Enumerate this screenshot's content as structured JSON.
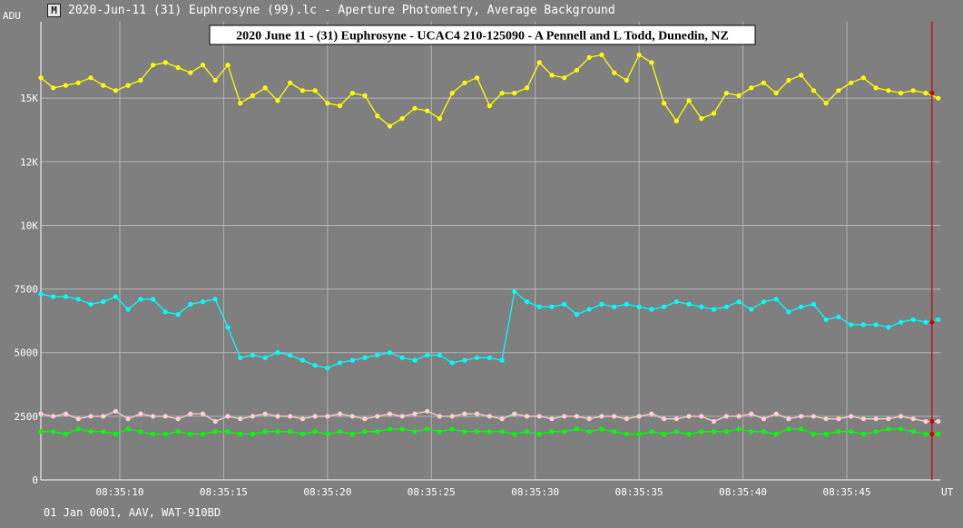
{
  "window": {
    "title": "2020-Jun-11 (31) Euphrosyne (99).lc - Aperture Photometry, Average Background",
    "icon": "lightcurve-app-icon"
  },
  "footer": {
    "text": "01 Jan 0001, AAV, WAT-910BD"
  },
  "colors": {
    "background": "#7f7f7f",
    "grid": "#b4b4b4",
    "axis": "#ffffff",
    "cursor": "#cc0000",
    "target": "#ffff00",
    "comp1": "#00ffff",
    "comp2": "#ffd0d0",
    "comp3": "#00ff00"
  },
  "chart_data": {
    "type": "line",
    "title": "2020 June 11 - (31) Euphrosyne - UCAC4 210-125090 - A Pennell and L Todd, Dunedin, NZ",
    "ylabel": "ADU",
    "xlabel": "UT",
    "ylim": [
      0,
      18000
    ],
    "xlim": [
      "08:35:06.2",
      "08:35:49.5"
    ],
    "x_ticks": [
      "08:35:10",
      "08:35:15",
      "08:35:20",
      "08:35:25",
      "08:35:30",
      "08:35:35",
      "08:35:40",
      "08:35:45"
    ],
    "y_ticks": [
      {
        "value": 0,
        "label": "0"
      },
      {
        "value": 2500,
        "label": "2500"
      },
      {
        "value": 5000,
        "label": "5000"
      },
      {
        "value": 7500,
        "label": "7500"
      },
      {
        "value": 10000,
        "label": "10K"
      },
      {
        "value": 12500,
        "label": "12K"
      },
      {
        "value": 15000,
        "label": "15K"
      }
    ],
    "grid": true,
    "cursor_time": "08:35:49.1",
    "x": [
      6.2,
      6.8,
      7.4,
      8.0,
      8.6,
      9.2,
      9.8,
      10.4,
      11.0,
      11.6,
      12.2,
      12.8,
      13.4,
      14.0,
      14.6,
      15.2,
      15.8,
      16.4,
      17.0,
      17.6,
      18.2,
      18.8,
      19.4,
      20.0,
      20.6,
      21.2,
      21.8,
      22.4,
      23.0,
      23.6,
      24.2,
      24.8,
      25.4,
      26.0,
      26.6,
      27.2,
      27.8,
      28.4,
      29.0,
      29.6,
      30.2,
      30.8,
      31.4,
      32.0,
      32.6,
      33.2,
      33.8,
      34.4,
      35.0,
      35.6,
      36.2,
      36.8,
      37.4,
      38.0,
      38.6,
      39.2,
      39.8,
      40.4,
      41.0,
      41.6,
      42.2,
      42.8,
      43.4,
      44.0,
      44.6,
      45.2,
      45.8,
      46.4,
      47.0,
      47.6,
      48.2,
      48.8,
      49.4
    ],
    "series": [
      {
        "name": "",
        "color": "#ffff00",
        "values": [
          15800,
          15400,
          15500,
          15600,
          15800,
          15500,
          15300,
          15500,
          15700,
          16300,
          16400,
          16200,
          16000,
          16300,
          15700,
          16300,
          14800,
          15100,
          15400,
          14900,
          15600,
          15300,
          15300,
          14800,
          14700,
          15200,
          15100,
          14300,
          13900,
          14200,
          14600,
          14500,
          14200,
          15200,
          15600,
          15800,
          14700,
          15200,
          15200,
          15400,
          16400,
          15900,
          15800,
          16100,
          16600,
          16700,
          16000,
          15700,
          16700,
          16400,
          14800,
          14100,
          14900,
          14200,
          14400,
          15200,
          15100,
          15400,
          15600,
          15200,
          15700,
          15900,
          15300,
          14800,
          15300,
          15600,
          15800,
          15400,
          15300,
          15200,
          15300,
          15200,
          15000
        ]
      },
      {
        "name": "",
        "color": "#00ffff",
        "values": [
          7300,
          7200,
          7200,
          7100,
          6900,
          7000,
          7200,
          6700,
          7100,
          7100,
          6600,
          6500,
          6900,
          7000,
          7100,
          6000,
          4800,
          4900,
          4800,
          5000,
          4900,
          4700,
          4500,
          4400,
          4600,
          4700,
          4800,
          4900,
          5000,
          4800,
          4700,
          4900,
          4900,
          4600,
          4700,
          4800,
          4800,
          4700,
          7400,
          7000,
          6800,
          6800,
          6900,
          6500,
          6700,
          6900,
          6800,
          6900,
          6800,
          6700,
          6800,
          7000,
          6900,
          6800,
          6700,
          6800,
          7000,
          6700,
          7000,
          7100,
          6600,
          6800,
          6900,
          6300,
          6400,
          6100,
          6100,
          6100,
          6000,
          6200,
          6300,
          6200,
          6300
        ]
      },
      {
        "name": "",
        "color": "#ffd0d0",
        "values": [
          2600,
          2500,
          2600,
          2400,
          2500,
          2500,
          2700,
          2400,
          2600,
          2500,
          2500,
          2400,
          2600,
          2600,
          2300,
          2500,
          2400,
          2500,
          2600,
          2500,
          2500,
          2400,
          2500,
          2500,
          2600,
          2500,
          2400,
          2500,
          2600,
          2500,
          2600,
          2700,
          2500,
          2500,
          2600,
          2600,
          2500,
          2400,
          2600,
          2500,
          2500,
          2400,
          2500,
          2500,
          2400,
          2500,
          2500,
          2400,
          2500,
          2600,
          2400,
          2400,
          2500,
          2500,
          2300,
          2500,
          2500,
          2600,
          2400,
          2600,
          2400,
          2500,
          2500,
          2400,
          2400,
          2500,
          2400,
          2400,
          2400,
          2500,
          2400,
          2300,
          2300
        ]
      },
      {
        "name": "",
        "color": "#00ff00",
        "values": [
          1900,
          1900,
          1800,
          2000,
          1900,
          1900,
          1800,
          2000,
          1900,
          1800,
          1800,
          1900,
          1800,
          1800,
          1900,
          1900,
          1800,
          1800,
          1900,
          1900,
          1900,
          1800,
          1900,
          1800,
          1900,
          1800,
          1900,
          1900,
          2000,
          2000,
          1900,
          2000,
          1900,
          2000,
          1900,
          1900,
          1900,
          1900,
          1800,
          1900,
          1800,
          1900,
          1900,
          2000,
          1900,
          2000,
          1900,
          1800,
          1800,
          1900,
          1800,
          1900,
          1800,
          1900,
          1900,
          1900,
          2000,
          1900,
          1900,
          1800,
          2000,
          2000,
          1800,
          1800,
          1900,
          1900,
          1800,
          1900,
          2000,
          2000,
          1900,
          1800,
          1800
        ]
      }
    ]
  }
}
